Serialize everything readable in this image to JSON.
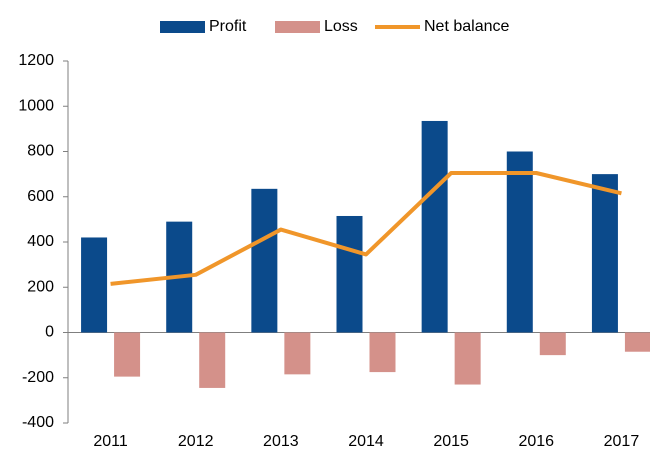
{
  "chart_data": {
    "type": "bar-line",
    "categories": [
      "2011",
      "2012",
      "2013",
      "2014",
      "2015",
      "2016",
      "2017"
    ],
    "series": [
      {
        "name": "Profit",
        "type": "bar",
        "color": "#0b4a8b",
        "values": [
          420,
          490,
          635,
          515,
          935,
          800,
          700
        ]
      },
      {
        "name": "Loss",
        "type": "bar",
        "color": "#d4918a",
        "values": [
          -195,
          -245,
          -185,
          -175,
          -230,
          -100,
          -85
        ]
      },
      {
        "name": "Net balance",
        "type": "line",
        "color": "#f0962a",
        "values": [
          215,
          255,
          455,
          345,
          705,
          705,
          615
        ]
      }
    ],
    "ylim": [
      -400,
      1200
    ],
    "yticks": [
      -400,
      -200,
      0,
      200,
      400,
      600,
      800,
      1000,
      1200
    ],
    "grid": false,
    "legend": "top"
  }
}
